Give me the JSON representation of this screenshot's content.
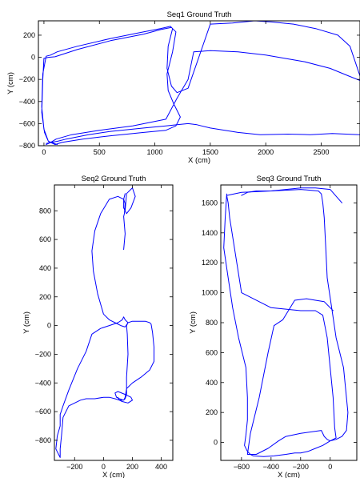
{
  "chart_data": [
    {
      "type": "line",
      "title": "Seq1 Ground Truth",
      "xlabel": "X (cm)",
      "ylabel": "Y (cm)",
      "xlim": [
        -50,
        2850
      ],
      "ylim": [
        -800,
        330
      ],
      "xticks": [
        0,
        500,
        1000,
        1500,
        2000,
        2500
      ],
      "yticks": [
        200,
        0,
        -200,
        -400,
        -600,
        -800
      ],
      "grid": false,
      "color": "#0000ff",
      "series": [
        {
          "x": [
            120,
            40,
            5,
            -20,
            -10,
            0,
            40,
            100,
            300,
            600,
            900,
            1050,
            1150,
            1190,
            1160,
            1110,
            1120,
            1170,
            1230,
            1190,
            1100,
            900,
            600,
            350,
            160,
            100,
            80,
            40,
            0,
            -20,
            -10,
            20,
            60,
            120,
            300,
            600,
            900,
            1050,
            1140,
            1160,
            1120,
            1110,
            1150,
            1200,
            1300,
            1500,
            1700,
            1900,
            2050,
            2250,
            2450,
            2650,
            2760,
            2850,
            2850,
            2750,
            2580,
            2350,
            2000,
            1750,
            1500,
            1350,
            1300,
            1200,
            1100,
            800,
            500,
            250,
            110,
            60,
            20
          ],
          "y": [
            -790,
            -760,
            -680,
            -500,
            -200,
            -10,
            0,
            5,
            70,
            150,
            210,
            250,
            270,
            230,
            50,
            -150,
            -300,
            -420,
            -540,
            -620,
            -660,
            -680,
            -710,
            -740,
            -770,
            -790,
            -780,
            -760,
            -650,
            -450,
            -150,
            10,
            20,
            50,
            100,
            170,
            230,
            260,
            280,
            260,
            100,
            -100,
            -260,
            -320,
            -280,
            300,
            310,
            330,
            320,
            300,
            260,
            200,
            100,
            -170,
            -210,
            -170,
            -100,
            -40,
            20,
            50,
            60,
            50,
            -200,
            -370,
            -560,
            -620,
            -660,
            -700,
            -740,
            -770,
            -790
          ]
        },
        {
          "x": [
            2850,
            2600,
            2400,
            2200,
            1950,
            1750,
            1500,
            1380,
            1300,
            1200,
            1100,
            900,
            600,
            400,
            200,
            120,
            60,
            20
          ],
          "y": [
            -700,
            -690,
            -700,
            -695,
            -700,
            -680,
            -640,
            -610,
            -600,
            -610,
            -620,
            -640,
            -670,
            -700,
            -740,
            -760,
            -770,
            -780
          ]
        }
      ]
    },
    {
      "type": "line",
      "title": "Seq2 Ground Truth",
      "xlabel": "X (cm)",
      "ylabel": "Y (cm)",
      "xlim": [
        -340,
        480
      ],
      "ylim": [
        -940,
        980
      ],
      "xticks": [
        -200,
        0,
        200,
        400
      ],
      "yticks": [
        800,
        600,
        400,
        200,
        0,
        -200,
        -400,
        -600,
        -800
      ],
      "grid": false,
      "color": "#0000ff",
      "series": [
        {
          "x": [
            140,
            150,
            145,
            140,
            145,
            150,
            140,
            100,
            40,
            -20,
            -60,
            -80,
            -70,
            -40,
            0,
            40,
            80,
            120,
            150,
            170,
            150,
            140,
            135,
            130,
            100,
            40,
            -20,
            -80,
            -120,
            -180,
            -240,
            -280,
            -300,
            -300,
            -320,
            -330,
            -300,
            -300,
            -290,
            -280,
            -240,
            -160,
            -120,
            -60,
            0,
            40,
            80,
            110,
            140,
            150,
            160,
            200,
            260,
            320,
            350,
            350,
            340,
            330,
            320,
            290,
            240,
            200,
            170,
            160,
            165,
            170,
            160,
            160,
            150,
            140,
            110,
            90,
            80,
            100,
            150,
            190,
            200,
            170,
            130,
            110,
            100
          ],
          "y": [
            530,
            640,
            700,
            760,
            780,
            850,
            880,
            900,
            880,
            780,
            660,
            520,
            380,
            220,
            80,
            40,
            20,
            0,
            -10,
            20,
            40,
            60,
            50,
            40,
            20,
            0,
            -20,
            -60,
            -180,
            -300,
            -450,
            -560,
            -620,
            -700,
            -770,
            -860,
            -920,
            -860,
            -760,
            -640,
            -560,
            -520,
            -510,
            -510,
            -500,
            -500,
            -510,
            -520,
            -520,
            -500,
            -440,
            -400,
            -360,
            -310,
            -250,
            -150,
            -50,
            10,
            20,
            30,
            30,
            30,
            20,
            0,
            -60,
            -200,
            -360,
            -480,
            -510,
            -520,
            -510,
            -500,
            -470,
            -460,
            -480,
            -500,
            -520,
            -540,
            -530,
            -520,
            -500
          ]
        },
        {
          "x": [
            150,
            160,
            200,
            220,
            190,
            160,
            140,
            140,
            150
          ],
          "y": [
            800,
            920,
            960,
            900,
            820,
            780,
            820,
            880,
            920
          ]
        }
      ]
    },
    {
      "type": "line",
      "title": "Seq3 Ground Truth",
      "xlabel": "X (cm)",
      "ylabel": "Y (cm)",
      "xlim": [
        -740,
        180
      ],
      "ylim": [
        -120,
        1720
      ],
      "xticks": [
        -600,
        -400,
        -200,
        0
      ],
      "yticks": [
        1600,
        1400,
        1200,
        1000,
        800,
        600,
        400,
        200,
        0
      ],
      "grid": false,
      "color": "#0000ff",
      "series": [
        {
          "x": [
            -700,
            -710,
            -720,
            -690,
            -660,
            -620,
            -570,
            -560,
            -560,
            -570,
            -580,
            -560,
            -540,
            -520,
            -450,
            -380,
            -300,
            -240,
            -200,
            -150,
            -100,
            -50,
            0,
            40,
            80,
            110,
            120,
            90,
            40,
            10,
            -20,
            -30,
            -40,
            -50,
            -60,
            -80,
            -200,
            -400,
            -600,
            -700,
            -690,
            -680,
            -600,
            -400,
            -200,
            -100,
            -50,
            -20,
            0,
            20,
            30,
            40,
            20,
            0,
            -20,
            -40,
            -60,
            -200,
            -300,
            -350,
            -420,
            -500,
            -560,
            -540,
            -480,
            -420,
            -380,
            -320,
            -240,
            -160,
            -100,
            -40,
            0,
            20
          ],
          "y": [
            1660,
            1500,
            1300,
            1100,
            900,
            700,
            500,
            300,
            150,
            50,
            -20,
            -60,
            -80,
            -90,
            -95,
            -90,
            -80,
            -70,
            -70,
            -60,
            -40,
            -20,
            10,
            20,
            40,
            80,
            200,
            500,
            700,
            900,
            1100,
            1300,
            1500,
            1600,
            1660,
            1680,
            1690,
            1680,
            1670,
            1650,
            1600,
            1500,
            1000,
            900,
            880,
            880,
            850,
            700,
            500,
            300,
            100,
            30,
            20,
            10,
            20,
            40,
            80,
            60,
            40,
            10,
            -40,
            -80,
            -80,
            60,
            300,
            600,
            780,
            820,
            950,
            960,
            950,
            940,
            900,
            880
          ]
        },
        {
          "x": [
            -600,
            -560,
            -500,
            -400,
            -300,
            -200,
            -100,
            0,
            80
          ],
          "y": [
            1650,
            1670,
            1680,
            1680,
            1690,
            1700,
            1700,
            1690,
            1600
          ]
        }
      ]
    }
  ]
}
